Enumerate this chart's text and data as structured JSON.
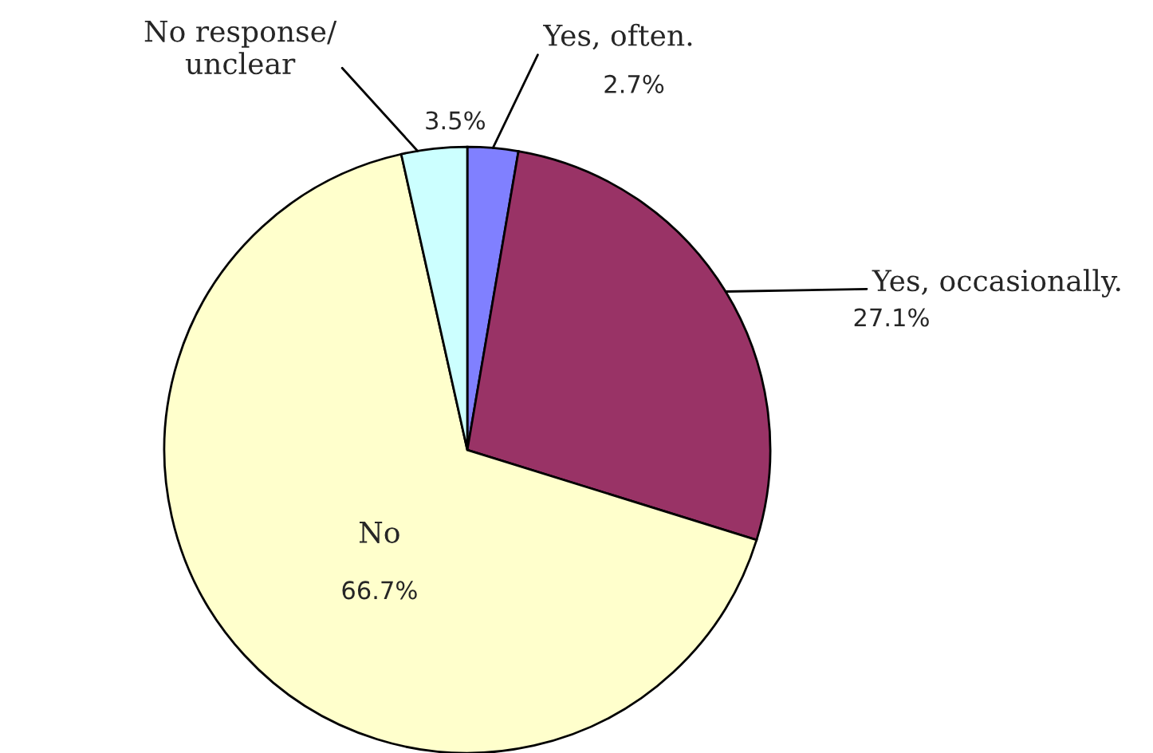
{
  "chart_data": {
    "type": "pie",
    "categories": [
      "Yes, often.",
      "Yes, occasionally.",
      "No",
      "No response/\nunclear"
    ],
    "values": [
      2.7,
      27.1,
      66.7,
      3.5
    ],
    "colors": [
      "#8080ff",
      "#993366",
      "#ffffcc",
      "#ccffff"
    ],
    "value_labels": [
      "2.7%",
      "27.1%",
      "66.7%",
      "3.5%"
    ]
  }
}
